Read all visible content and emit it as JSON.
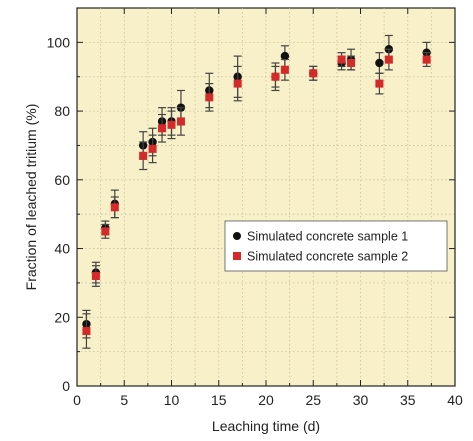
{
  "chart_data": {
    "type": "scatter",
    "title": "",
    "xlabel": "Leaching time (d)",
    "ylabel": "Fraction of leached tritium (%)",
    "xlim": [
      0,
      40
    ],
    "ylim": [
      0,
      110
    ],
    "xticks": [
      0,
      5,
      10,
      15,
      20,
      25,
      30,
      35,
      40
    ],
    "yticks": [
      0,
      20,
      40,
      60,
      80,
      100
    ],
    "grid": true,
    "legend_position": "center-right",
    "background_color": "#f8f0c8",
    "series": [
      {
        "name": "Simulated concrete sample 1",
        "color": "#111111",
        "marker": "circle",
        "points": [
          {
            "x": 1,
            "y": 18,
            "err": 4
          },
          {
            "x": 2,
            "y": 33,
            "err": 3
          },
          {
            "x": 3,
            "y": 46,
            "err": 2
          },
          {
            "x": 4,
            "y": 53,
            "err": 4
          },
          {
            "x": 7,
            "y": 70,
            "err": 4
          },
          {
            "x": 8,
            "y": 71,
            "err": 4
          },
          {
            "x": 9,
            "y": 77,
            "err": 4
          },
          {
            "x": 10,
            "y": 77,
            "err": 4
          },
          {
            "x": 11,
            "y": 81,
            "err": 5
          },
          {
            "x": 14,
            "y": 86,
            "err": 5
          },
          {
            "x": 17,
            "y": 90,
            "err": 6
          },
          {
            "x": 21,
            "y": 90,
            "err": 4
          },
          {
            "x": 22,
            "y": 96,
            "err": 3
          },
          {
            "x": 25,
            "y": 91,
            "err": 2
          },
          {
            "x": 28,
            "y": 94,
            "err": 2
          },
          {
            "x": 29,
            "y": 95,
            "err": 3
          },
          {
            "x": 32,
            "y": 94,
            "err": 3
          },
          {
            "x": 33,
            "y": 98,
            "err": 4
          },
          {
            "x": 37,
            "y": 97,
            "err": 3
          }
        ]
      },
      {
        "name": "Simulated concrete sample 2",
        "color": "#d42a2a",
        "marker": "square",
        "points": [
          {
            "x": 1,
            "y": 16,
            "err": 5
          },
          {
            "x": 2,
            "y": 32,
            "err": 3
          },
          {
            "x": 3,
            "y": 45,
            "err": 2
          },
          {
            "x": 4,
            "y": 52,
            "err": 3
          },
          {
            "x": 7,
            "y": 67,
            "err": 4
          },
          {
            "x": 8,
            "y": 69,
            "err": 4
          },
          {
            "x": 9,
            "y": 75,
            "err": 4
          },
          {
            "x": 10,
            "y": 76,
            "err": 4
          },
          {
            "x": 11,
            "y": 77,
            "err": 4
          },
          {
            "x": 14,
            "y": 84,
            "err": 4
          },
          {
            "x": 17,
            "y": 88,
            "err": 5
          },
          {
            "x": 21,
            "y": 90,
            "err": 3
          },
          {
            "x": 22,
            "y": 92,
            "err": 3
          },
          {
            "x": 25,
            "y": 91,
            "err": 2
          },
          {
            "x": 28,
            "y": 95,
            "err": 2
          },
          {
            "x": 29,
            "y": 94,
            "err": 2
          },
          {
            "x": 32,
            "y": 88,
            "err": 3
          },
          {
            "x": 33,
            "y": 95,
            "err": 3
          },
          {
            "x": 37,
            "y": 95,
            "err": 2
          }
        ]
      }
    ]
  }
}
